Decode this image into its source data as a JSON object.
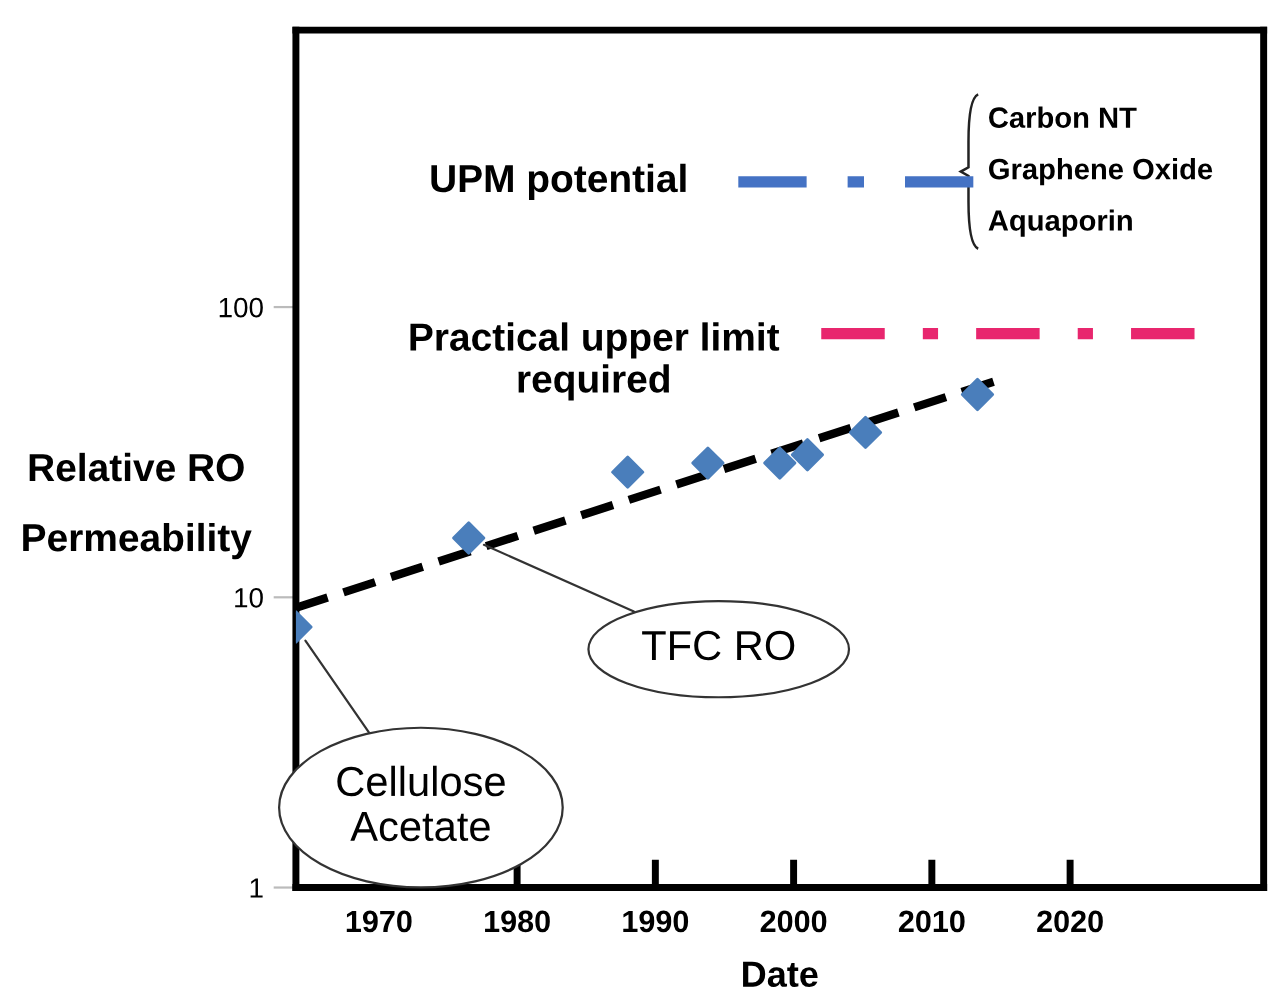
{
  "chart_data": {
    "type": "scatter",
    "xlabel": "Date",
    "ylabel": "Relative RO Permeability",
    "xlim": [
      1964,
      2034
    ],
    "xticks": [
      1970,
      1980,
      1990,
      2000,
      2010,
      2020
    ],
    "ylim": [
      1,
      900
    ],
    "yticks": [
      1,
      10,
      100
    ],
    "log": "y",
    "grid": false,
    "legend": false,
    "marker": "diamond",
    "series": [
      {
        "color": "#4a7ebb",
        "x": [
          1964,
          1976.5,
          1988,
          1993.8,
          1999,
          2001,
          2005.2,
          2013.3
        ],
        "values": [
          7.9,
          16,
          27,
          29,
          29,
          31,
          37,
          50
        ]
      },
      {
        "type": "line",
        "color": "#000000",
        "line_style": "dashed",
        "marker": "none",
        "x": [
          1964,
          2014.8
        ],
        "values": [
          9.2,
          56
        ]
      },
      {
        "type": "line",
        "name": "UPM potential",
        "color": "#4472c4",
        "line_style": "dashed",
        "marker": "none",
        "x": [
          1996,
          2013
        ],
        "values": [
          270,
          270
        ]
      },
      {
        "type": "line",
        "name": "Practical upper limit required",
        "color": "#e8266e",
        "line_style": "dashed",
        "marker": "none",
        "x": [
          2002,
          2029
        ],
        "values": [
          81,
          81
        ]
      }
    ],
    "annotations": [
      {
        "text": "Cellulose Acetate",
        "x": 1964,
        "y": 7.9
      },
      {
        "text": "TFC RO",
        "x": 1976.5,
        "y": 16
      },
      "Carbon NT",
      "Graphene Oxide",
      "Aquaporin"
    ]
  }
}
